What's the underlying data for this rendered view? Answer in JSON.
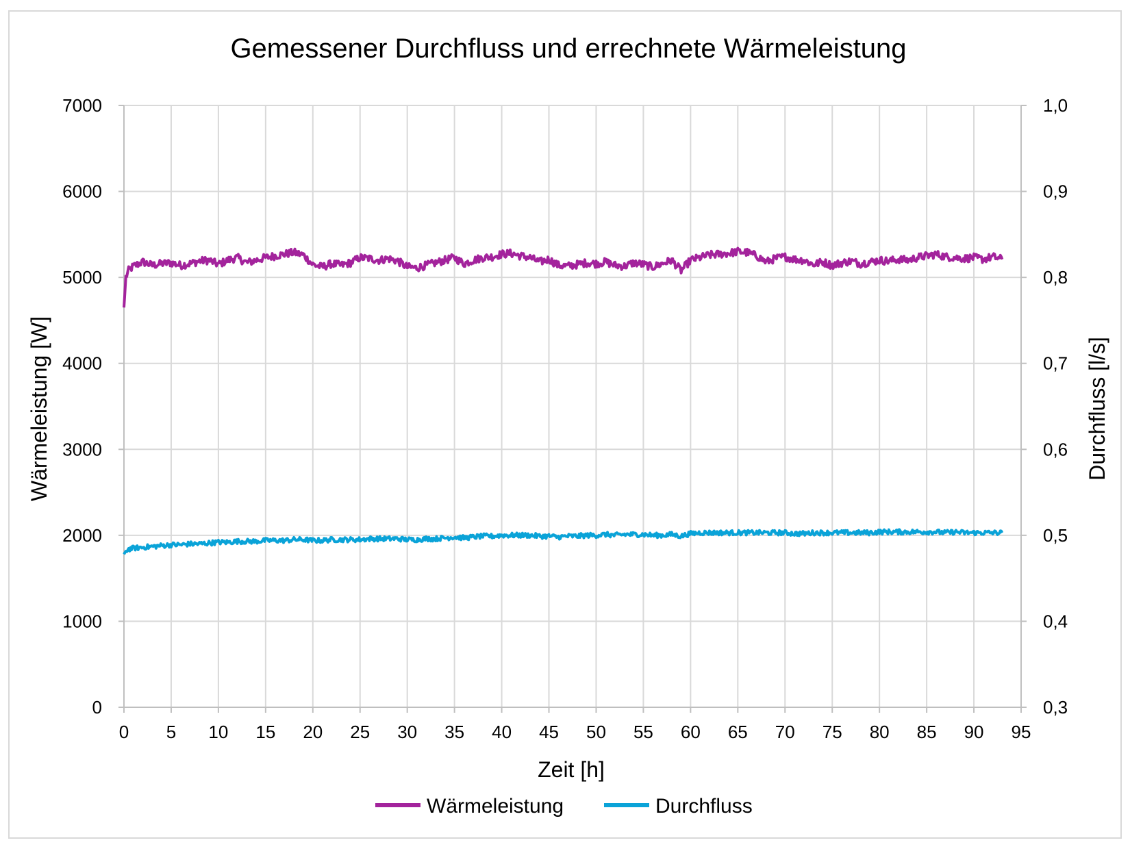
{
  "chart_data": {
    "type": "line",
    "title": "Gemessener Durchfluss und errechnete Wärmeleistung",
    "xlabel": "Zeit [h]",
    "ylabel": "Wärmeleistung [W]",
    "y2label": "Durchfluss [l/s]",
    "xlim": [
      0,
      95
    ],
    "ylim": [
      0,
      7000
    ],
    "y2lim": [
      0.3,
      1.0
    ],
    "x_ticks": [
      "0",
      "5",
      "10",
      "15",
      "20",
      "25",
      "30",
      "35",
      "40",
      "45",
      "50",
      "55",
      "60",
      "65",
      "70",
      "75",
      "80",
      "85",
      "90",
      "95"
    ],
    "y_ticks": [
      "0",
      "1000",
      "2000",
      "3000",
      "4000",
      "5000",
      "6000",
      "7000"
    ],
    "y2_ticks": [
      "0,3",
      "0,4",
      "0,5",
      "0,6",
      "0,7",
      "0,8",
      "0,9",
      "1,0"
    ],
    "grid": true,
    "legend_position": "bottom",
    "series": [
      {
        "name": "Wärmeleistung",
        "axis": "left",
        "color": "#a3239c",
        "x": [
          0,
          0.2,
          0.5,
          1,
          2,
          3,
          4,
          5,
          6,
          7,
          8,
          9,
          10,
          11,
          12,
          13,
          14,
          15,
          16,
          17,
          18,
          19,
          20,
          21,
          22,
          23,
          24,
          25,
          26,
          27,
          28,
          29,
          30,
          31,
          32,
          33,
          34,
          35,
          36,
          37,
          38,
          39,
          40,
          41,
          42,
          43,
          44,
          45,
          46,
          47,
          48,
          49,
          50,
          51,
          52,
          53,
          54,
          55,
          56,
          57,
          58,
          59,
          60,
          61,
          62,
          63,
          64,
          65,
          66,
          67,
          68,
          69,
          70,
          71,
          72,
          73,
          74,
          75,
          76,
          77,
          78,
          79,
          80,
          81,
          82,
          83,
          84,
          85,
          86,
          87,
          88,
          89,
          90,
          91,
          92,
          93
        ],
        "values": [
          4650,
          5000,
          5080,
          5130,
          5180,
          5140,
          5160,
          5170,
          5140,
          5160,
          5190,
          5200,
          5150,
          5200,
          5230,
          5170,
          5200,
          5230,
          5250,
          5270,
          5290,
          5260,
          5150,
          5120,
          5160,
          5140,
          5170,
          5230,
          5220,
          5200,
          5220,
          5190,
          5120,
          5110,
          5140,
          5170,
          5200,
          5230,
          5160,
          5200,
          5230,
          5240,
          5270,
          5280,
          5250,
          5230,
          5180,
          5210,
          5140,
          5130,
          5150,
          5170,
          5160,
          5180,
          5140,
          5130,
          5170,
          5150,
          5120,
          5160,
          5200,
          5080,
          5200,
          5230,
          5260,
          5270,
          5280,
          5300,
          5290,
          5250,
          5180,
          5220,
          5240,
          5210,
          5200,
          5150,
          5180,
          5140,
          5170,
          5190,
          5160,
          5180,
          5200,
          5190,
          5210,
          5200,
          5230,
          5250,
          5270,
          5240,
          5230,
          5220,
          5230,
          5210,
          5240,
          5210
        ]
      },
      {
        "name": "Durchfluss",
        "axis": "right",
        "color": "#0aa3d8",
        "x": [
          0,
          0.2,
          0.5,
          1,
          2,
          3,
          4,
          5,
          6,
          7,
          8,
          9,
          10,
          11,
          12,
          13,
          14,
          15,
          16,
          17,
          18,
          19,
          20,
          21,
          22,
          23,
          24,
          25,
          26,
          27,
          28,
          29,
          30,
          31,
          32,
          33,
          34,
          35,
          36,
          37,
          38,
          39,
          40,
          41,
          42,
          43,
          44,
          45,
          46,
          47,
          48,
          49,
          50,
          51,
          52,
          53,
          54,
          55,
          56,
          57,
          58,
          59,
          60,
          61,
          62,
          63,
          64,
          65,
          66,
          67,
          68,
          69,
          70,
          71,
          72,
          73,
          74,
          75,
          76,
          77,
          78,
          79,
          80,
          81,
          82,
          83,
          84,
          85,
          86,
          87,
          88,
          89,
          90,
          91,
          92,
          93
        ],
        "values": [
          0.478,
          0.482,
          0.484,
          0.485,
          0.486,
          0.487,
          0.488,
          0.489,
          0.489,
          0.49,
          0.49,
          0.491,
          0.492,
          0.492,
          0.493,
          0.493,
          0.493,
          0.494,
          0.494,
          0.494,
          0.495,
          0.495,
          0.494,
          0.494,
          0.495,
          0.495,
          0.495,
          0.495,
          0.496,
          0.496,
          0.496,
          0.496,
          0.495,
          0.495,
          0.496,
          0.496,
          0.497,
          0.498,
          0.497,
          0.498,
          0.499,
          0.499,
          0.5,
          0.5,
          0.5,
          0.5,
          0.499,
          0.499,
          0.498,
          0.499,
          0.499,
          0.5,
          0.5,
          0.501,
          0.5,
          0.501,
          0.501,
          0.501,
          0.5,
          0.5,
          0.501,
          0.499,
          0.502,
          0.503,
          0.503,
          0.503,
          0.503,
          0.503,
          0.503,
          0.503,
          0.503,
          0.503,
          0.503,
          0.502,
          0.502,
          0.503,
          0.503,
          0.503,
          0.503,
          0.503,
          0.503,
          0.503,
          0.504,
          0.504,
          0.504,
          0.504,
          0.504,
          0.504,
          0.504,
          0.503,
          0.504,
          0.503,
          0.503,
          0.503,
          0.503,
          0.503
        ]
      }
    ]
  }
}
